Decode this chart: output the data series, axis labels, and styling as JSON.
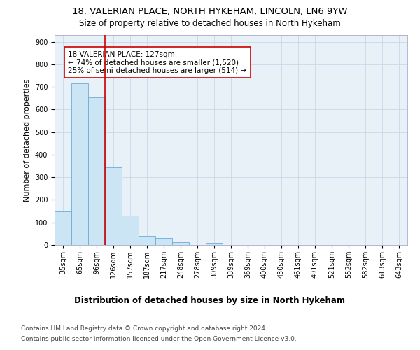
{
  "title_line1": "18, VALERIAN PLACE, NORTH HYKEHAM, LINCOLN, LN6 9YW",
  "title_line2": "Size of property relative to detached houses in North Hykeham",
  "xlabel": "Distribution of detached houses by size in North Hykeham",
  "ylabel": "Number of detached properties",
  "categories": [
    "35sqm",
    "65sqm",
    "96sqm",
    "126sqm",
    "157sqm",
    "187sqm",
    "217sqm",
    "248sqm",
    "278sqm",
    "309sqm",
    "339sqm",
    "369sqm",
    "400sqm",
    "430sqm",
    "461sqm",
    "491sqm",
    "521sqm",
    "552sqm",
    "582sqm",
    "613sqm",
    "643sqm"
  ],
  "bar_heights": [
    150,
    715,
    655,
    345,
    130,
    40,
    30,
    12,
    0,
    10,
    0,
    0,
    0,
    0,
    0,
    0,
    0,
    0,
    0,
    0,
    0
  ],
  "bar_color": "#cce5f5",
  "bar_edge_color": "#6baed6",
  "vline_color": "#cc0000",
  "vline_position": 2.5,
  "annotation_box_text": "18 VALERIAN PLACE: 127sqm\n← 74% of detached houses are smaller (1,520)\n25% of semi-detached houses are larger (514) →",
  "annotation_box_color": "#cc0000",
  "annotation_box_fill": "#ffffff",
  "ylim": [
    0,
    930
  ],
  "yticks": [
    0,
    100,
    200,
    300,
    400,
    500,
    600,
    700,
    800,
    900
  ],
  "grid_color": "#c8d8e8",
  "ax_facecolor": "#e8f0f8",
  "background_color": "#ffffff",
  "footer_line1": "Contains HM Land Registry data © Crown copyright and database right 2024.",
  "footer_line2": "Contains public sector information licensed under the Open Government Licence v3.0.",
  "title_fontsize": 9.5,
  "subtitle_fontsize": 8.5,
  "ylabel_fontsize": 8,
  "xlabel_fontsize": 8.5,
  "tick_fontsize": 7,
  "annotation_fontsize": 7.5,
  "footer_fontsize": 6.5
}
